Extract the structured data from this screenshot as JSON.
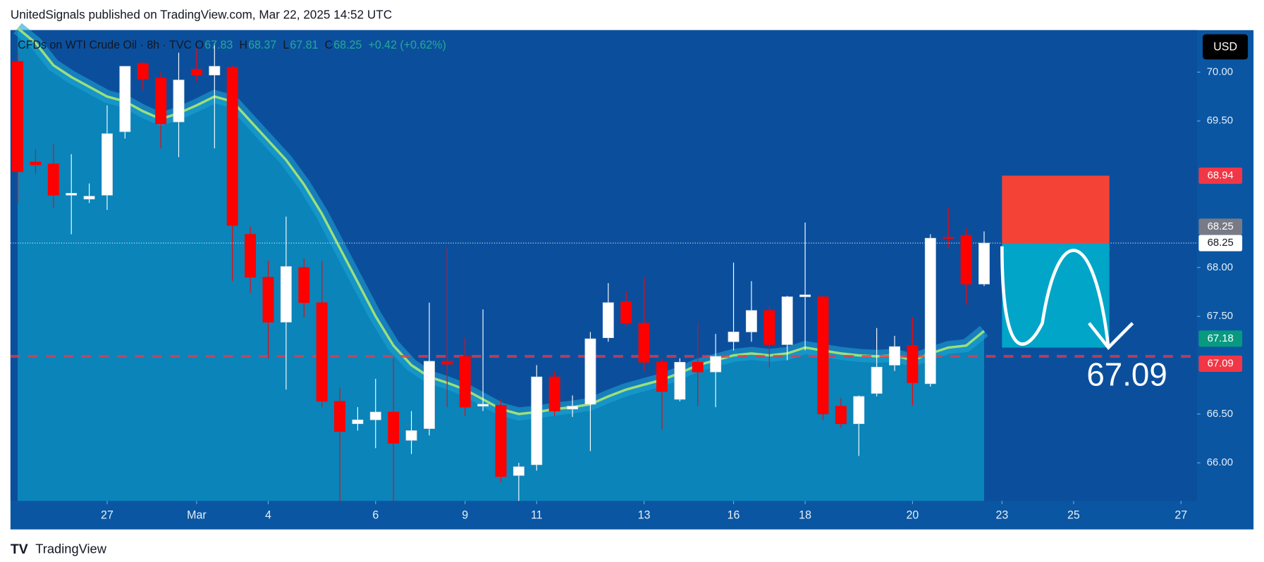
{
  "header": {
    "text": "UnitedSignals published on TradingView.com, Mar 22, 2025 14:52 UTC"
  },
  "footer": {
    "brand": "TradingView"
  },
  "currency_button": "USD",
  "legend": {
    "symbol": "CFDs on WTI Crude Oil · 8h · TVC",
    "items": [
      {
        "key": "O",
        "value": 67.83
      },
      {
        "key": "H",
        "value": 68.37
      },
      {
        "key": "L",
        "value": 67.81
      },
      {
        "key": "C",
        "value": 68.25
      }
    ],
    "change": "+0.42 (+0.62%)"
  },
  "chart_data": {
    "type": "candlestick",
    "up_color": "#ffffff",
    "down_color": "#ff0000",
    "open": [
      70.11,
      69.08,
      69.06,
      68.74,
      68.7,
      68.74,
      69.39,
      70.09,
      69.94,
      69.49,
      70.03,
      69.97,
      70.05,
      68.34,
      67.9,
      67.44,
      68.0,
      67.64,
      66.63,
      66.4,
      66.44,
      66.52,
      66.23,
      66.35,
      67.04,
      67.09,
      66.58,
      66.59,
      65.87,
      65.98,
      66.88,
      66.55,
      66.6,
      67.28,
      67.65,
      67.43,
      67.03,
      66.65,
      67.03,
      66.93,
      67.24,
      67.34,
      67.56,
      67.21,
      67.7,
      67.7,
      66.58,
      66.4,
      66.71,
      67.0,
      67.2,
      66.81,
      68.31,
      68.33,
      67.83
    ],
    "high": [
      70.2,
      69.21,
      69.26,
      69.16,
      68.86,
      69.66,
      70.06,
      70.1,
      70.0,
      70.2,
      70.24,
      70.3,
      70.07,
      68.42,
      68.07,
      68.52,
      68.09,
      68.07,
      66.77,
      66.57,
      66.86,
      67.07,
      66.53,
      67.64,
      68.2,
      67.28,
      67.57,
      66.65,
      66.0,
      67.0,
      66.94,
      66.69,
      67.34,
      67.84,
      67.76,
      67.9,
      67.07,
      67.07,
      67.44,
      67.32,
      68.05,
      67.86,
      67.61,
      67.71,
      68.46,
      67.71,
      66.66,
      66.69,
      67.38,
      67.3,
      67.49,
      68.34,
      68.61,
      68.4,
      68.37
    ],
    "low": [
      68.66,
      68.96,
      68.61,
      68.34,
      68.66,
      68.59,
      69.32,
      69.82,
      69.22,
      69.13,
      69.91,
      69.22,
      67.86,
      67.74,
      67.07,
      66.75,
      67.49,
      66.57,
      65.6,
      66.33,
      66.15,
      65.6,
      66.09,
      66.28,
      66.57,
      66.48,
      66.53,
      65.8,
      65.61,
      65.92,
      66.48,
      66.47,
      66.12,
      67.24,
      67.4,
      66.94,
      66.34,
      66.63,
      66.58,
      66.57,
      67.15,
      67.24,
      66.98,
      67.05,
      67.15,
      66.44,
      66.36,
      66.07,
      66.68,
      66.94,
      66.59,
      66.78,
      68.2,
      67.62,
      67.81
    ],
    "close": [
      68.98,
      69.05,
      68.74,
      68.76,
      68.73,
      69.37,
      70.06,
      69.93,
      69.47,
      69.92,
      69.97,
      70.06,
      68.43,
      67.9,
      67.44,
      68.01,
      67.64,
      66.63,
      66.32,
      66.44,
      66.52,
      66.2,
      66.33,
      67.04,
      67.01,
      66.57,
      66.6,
      65.86,
      65.96,
      66.88,
      66.53,
      66.58,
      67.27,
      67.64,
      67.43,
      67.03,
      66.73,
      67.03,
      66.93,
      67.09,
      67.34,
      67.56,
      67.21,
      67.7,
      67.72,
      66.5,
      66.4,
      66.68,
      66.98,
      67.19,
      66.82,
      68.3,
      68.3,
      67.83,
      68.25
    ],
    "ema": {
      "color": "#9be07a",
      "values": [
        70.45,
        70.3,
        70.07,
        69.95,
        69.85,
        69.75,
        69.7,
        69.6,
        69.52,
        69.58,
        69.66,
        69.75,
        69.7,
        69.5,
        69.3,
        69.1,
        68.85,
        68.55,
        68.2,
        67.85,
        67.5,
        67.2,
        67.0,
        66.88,
        66.82,
        66.75,
        66.65,
        66.55,
        66.5,
        66.52,
        66.55,
        66.57,
        66.6,
        66.68,
        66.75,
        66.8,
        66.85,
        66.92,
        67.0,
        67.05,
        67.1,
        67.12,
        67.1,
        67.12,
        67.18,
        67.15,
        67.12,
        67.1,
        67.09,
        67.1,
        67.05,
        67.12,
        67.18,
        67.2,
        67.35
      ]
    },
    "xlim": [
      -0.4,
      65.9
    ],
    "xticks": [
      {
        "value": 5,
        "label": "27"
      },
      {
        "value": 10,
        "label": "Mar"
      },
      {
        "value": 14,
        "label": "4"
      },
      {
        "value": 20,
        "label": "6"
      },
      {
        "value": 25,
        "label": "9"
      },
      {
        "value": 29,
        "label": "11"
      },
      {
        "value": 35,
        "label": "13"
      },
      {
        "value": 40,
        "label": "16"
      },
      {
        "value": 44,
        "label": "18"
      },
      {
        "value": 50,
        "label": "20"
      },
      {
        "value": 55,
        "label": "23"
      },
      {
        "value": 59,
        "label": "25"
      },
      {
        "value": 65,
        "label": "27"
      }
    ],
    "ylim": [
      65.61,
      70.43
    ],
    "yticks": [
      {
        "value": 66,
        "label": "66.00"
      },
      {
        "value": 66.5,
        "label": "66.50"
      },
      {
        "value": 67.5,
        "label": "67.50"
      },
      {
        "value": 68,
        "label": "68.00"
      },
      {
        "value": 69.5,
        "label": "69.50"
      },
      {
        "value": 70,
        "label": "70.00"
      }
    ],
    "price_labels": [
      {
        "value": 68.94,
        "color": "#f23645"
      },
      {
        "value": 68.25,
        "color": "#787b86"
      },
      {
        "value": 68.25,
        "color": "#ffffff"
      },
      {
        "value": 67.18,
        "color": "#089981"
      },
      {
        "value": 67.09,
        "color": "#f23645"
      }
    ],
    "position": {
      "start": 55,
      "end": 61,
      "stop": 68.94,
      "entry": 68.25,
      "target": 67.18
    },
    "level": 67.09,
    "target_label": 67.09
  }
}
